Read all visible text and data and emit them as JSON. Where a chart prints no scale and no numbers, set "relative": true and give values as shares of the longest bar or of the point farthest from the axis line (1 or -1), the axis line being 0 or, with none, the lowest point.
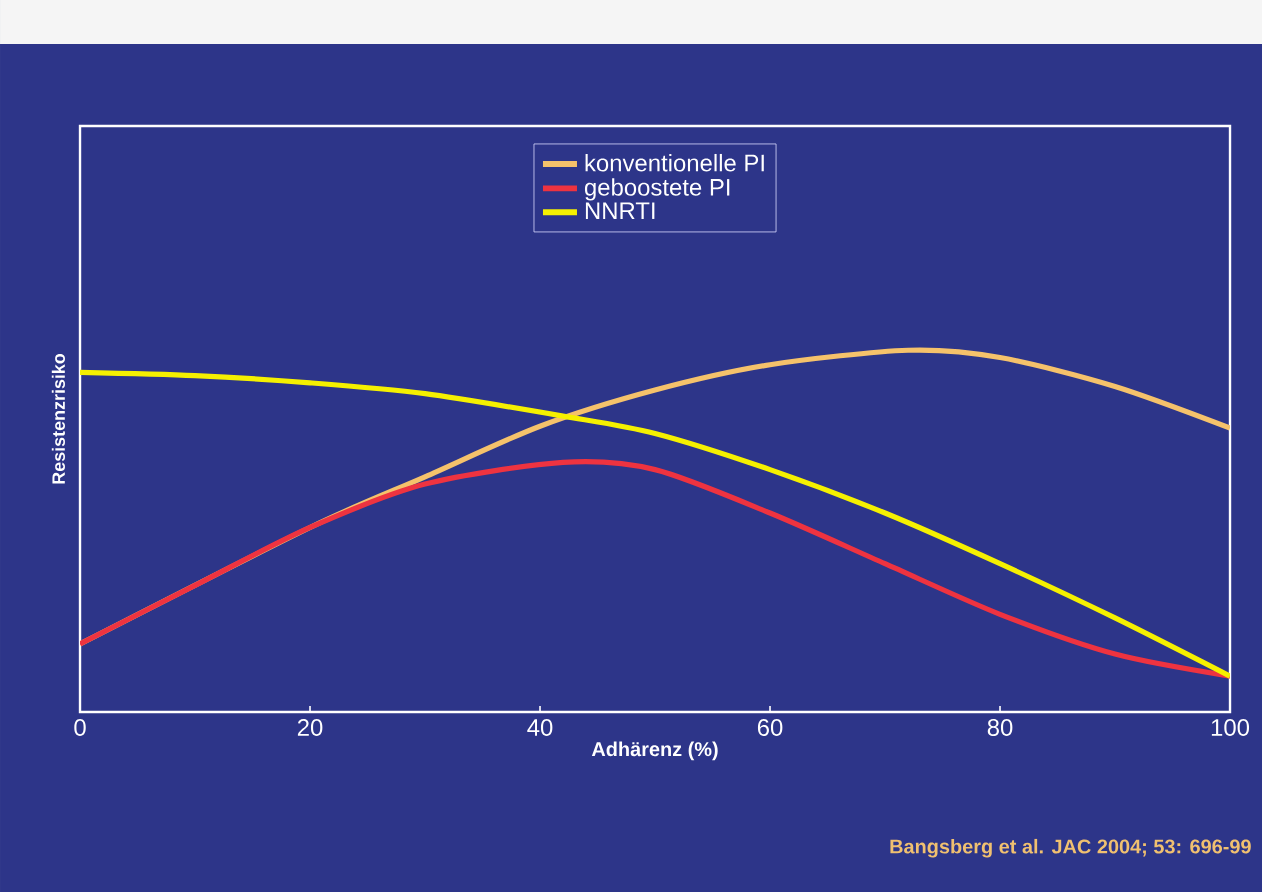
{
  "chart_data": {
    "type": "line",
    "relative": true,
    "xlabel": "Adhärenz (%)",
    "ylabel": "Resistenzrisiko",
    "xlim": [
      0,
      100
    ],
    "xticks": [
      0,
      20,
      40,
      60,
      80,
      100
    ],
    "legend": "top",
    "grid": false,
    "marker": "none",
    "line_style": "solid",
    "annotations": [
      "Bangsberg et al. JAC 2004; 53: 696-99"
    ],
    "series": [
      {
        "name": "konventionelle PI",
        "color": "#f5c26b",
        "x": [
          0,
          10,
          20,
          30,
          40,
          50,
          60,
          72,
          80,
          90,
          100
        ],
        "values": [
          0.188,
          null,
          0.51,
          0.65,
          0.79,
          0.89,
          0.96,
          1.0,
          0.98,
          0.9,
          0.785
        ]
      },
      {
        "name": "geboostete PI",
        "color": "#ee3340",
        "x": [
          0,
          10,
          20,
          30,
          42,
          50,
          60,
          70,
          80,
          90,
          100
        ],
        "values": [
          0.188,
          0.35,
          0.51,
          0.63,
          0.69,
          0.67,
          0.55,
          0.41,
          0.27,
          0.16,
          0.099
        ]
      },
      {
        "name": "NNRTI",
        "color": "#f5f000",
        "x": [
          0,
          10,
          20,
          30,
          42,
          50,
          60,
          70,
          80,
          90,
          100
        ],
        "values": [
          0.939,
          0.93,
          0.91,
          0.88,
          0.818,
          0.77,
          0.67,
          0.55,
          0.41,
          0.26,
          0.099
        ]
      }
    ]
  }
}
